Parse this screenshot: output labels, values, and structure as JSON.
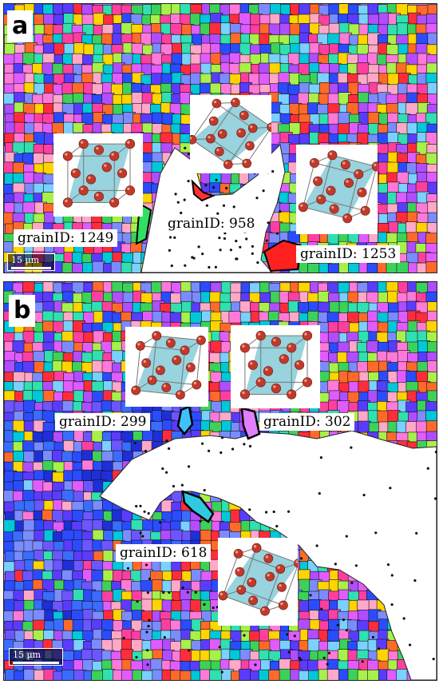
{
  "panels": [
    {
      "letter": "a",
      "scale_bar": "15 μm",
      "grains": [
        {
          "label": "grainID: 1249"
        },
        {
          "label": "grainID: 958"
        },
        {
          "label": "grainID: 1253"
        }
      ]
    },
    {
      "letter": "b",
      "scale_bar": "15 μm",
      "grains": [
        {
          "label": "grainID: 299"
        },
        {
          "label": "grainID: 302"
        },
        {
          "label": "grainID: 618"
        }
      ]
    }
  ],
  "colors": {
    "atom": "#c0392b",
    "atom_highlight": "#e8a090",
    "cell_plane": "#7ec8d6",
    "grain_boundary": "#000000",
    "ebsd_palette": [
      "#ff3fa0",
      "#ffd400",
      "#3cd25a",
      "#2b4bff",
      "#b04dff",
      "#00c8d8",
      "#ff6a2a",
      "#7ad0ff",
      "#ff7ad8",
      "#a8f04a",
      "#5a3cff",
      "#ff2d3c",
      "#30e0b0",
      "#e05cff",
      "#ffa8c8",
      "#7a8cff"
    ]
  },
  "icons": [
    "fcc-unit-cell-icon"
  ]
}
